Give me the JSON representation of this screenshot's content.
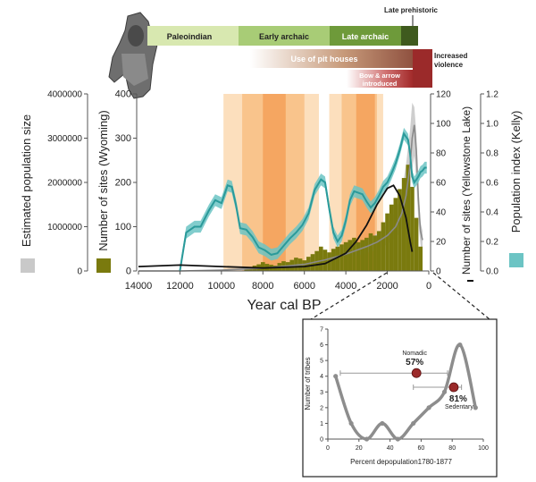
{
  "colors": {
    "olive": "#7a7a0e",
    "teal": "#2a9a9a",
    "teal_band": "#6cc4c4",
    "gray_band": "#c9c9c9",
    "gray_line": "#8a8a8a",
    "orange_light": "#fcd9b2",
    "orange_mid": "#f8b878",
    "orange_dark": "#f39a4e",
    "dark_red": "#9b2a2a",
    "green_light": "#d8e8b0",
    "green_mid": "#a8cc76",
    "green_dark": "#6e9a3a"
  },
  "periods": {
    "paleoindian": "Paleoindian",
    "early_archaic": "Early archaic",
    "late_archaic": "Late archaic",
    "late_prehistoric": "Late prehistoric",
    "pit_houses": "Use of pit houses",
    "violence": "Increased violence",
    "bow": "Bow & arrow introduced"
  },
  "chart_data": [
    {
      "type": "line",
      "xlabel": "Year cal BP",
      "xlim": [
        14000,
        0
      ],
      "x_ticks": [
        "14000",
        "12000",
        "10000",
        "8000",
        "6000",
        "4000",
        "2000",
        "0"
      ],
      "axes": {
        "population_size": {
          "label": "Estimated population size",
          "ticks": [
            "0",
            "1000000",
            "2000000",
            "3000000",
            "4000000"
          ],
          "ylim": [
            0,
            4000000
          ]
        },
        "sites_wyoming": {
          "label": "Number of sites (Wyoming)",
          "ticks": [
            "0",
            "100",
            "200",
            "300",
            "400"
          ],
          "ylim": [
            0,
            400
          ]
        },
        "sites_yellowstone": {
          "label": "Number of sites (Yellowstone Lake)",
          "ticks": [
            "0",
            "20",
            "40",
            "60",
            "80",
            "100",
            "120"
          ],
          "ylim": [
            0,
            120
          ]
        },
        "population_index": {
          "label": "Population index (Kelly)",
          "ticks": [
            "0.0",
            "0.2",
            "0.4",
            "0.6",
            "0.8",
            "1.0",
            "1.2"
          ],
          "ylim": [
            0,
            1.2
          ]
        }
      },
      "shaded_bands_bp": [
        {
          "from": 9900,
          "to": 5300,
          "shade": "light"
        },
        {
          "from": 9000,
          "to": 6000,
          "shade": "mid"
        },
        {
          "from": 8000,
          "to": 6900,
          "shade": "dark"
        },
        {
          "from": 4800,
          "to": 2200,
          "shade": "light"
        },
        {
          "from": 4200,
          "to": 2500,
          "shade": "mid"
        },
        {
          "from": 3500,
          "to": 2600,
          "shade": "dark"
        }
      ],
      "series": [
        {
          "name": "Number of sites (Wyoming)",
          "style": "bars",
          "axis": "sites_wyoming",
          "bin_width": 200,
          "x": [
            8800,
            8600,
            8400,
            8200,
            8000,
            7800,
            7600,
            7400,
            7200,
            7000,
            6800,
            6600,
            6400,
            6200,
            6000,
            5800,
            5600,
            5400,
            5200,
            5000,
            4800,
            4600,
            4400,
            4200,
            4000,
            3800,
            3600,
            3400,
            3200,
            3000,
            2800,
            2600,
            2400,
            2200,
            2000,
            1800,
            1600,
            1400,
            1200,
            1000,
            800,
            600,
            400
          ],
          "y": [
            5,
            8,
            12,
            15,
            20,
            16,
            14,
            12,
            18,
            22,
            20,
            25,
            30,
            28,
            24,
            32,
            38,
            45,
            55,
            48,
            42,
            50,
            55,
            60,
            65,
            70,
            75,
            65,
            70,
            75,
            85,
            80,
            90,
            110,
            130,
            150,
            165,
            185,
            210,
            240,
            190,
            120,
            55
          ]
        },
        {
          "name": "Estimated population size",
          "style": "band",
          "axis": "population_size",
          "x": [
            14000,
            12000,
            10000,
            8000,
            6000,
            5000,
            4000,
            3000,
            2500,
            2000,
            1600,
            1300,
            1100,
            900,
            800,
            700,
            600,
            500,
            400,
            300
          ],
          "y": [
            0,
            0,
            20000,
            60000,
            150000,
            250000,
            380000,
            550000,
            650000,
            800000,
            1000000,
            1300000,
            1700000,
            2400000,
            3000000,
            3300000,
            2700000,
            1600000,
            900000,
            700000
          ],
          "y_low": [
            0,
            0,
            10000,
            30000,
            100000,
            180000,
            280000,
            400000,
            480000,
            600000,
            750000,
            950000,
            1250000,
            1800000,
            2300000,
            2600000,
            2000000,
            1100000,
            600000,
            400000
          ],
          "y_high": [
            0,
            0,
            30000,
            90000,
            200000,
            320000,
            480000,
            700000,
            840000,
            1050000,
            1350000,
            1800000,
            2400000,
            3200000,
            3800000,
            3700000,
            3100000,
            1900000,
            1100000,
            900000
          ]
        },
        {
          "name": "Number of sites (Yellowstone Lake)",
          "style": "line",
          "axis": "sites_yellowstone",
          "x": [
            14000,
            12000,
            10000,
            8000,
            6000,
            5000,
            4000,
            3500,
            3000,
            2500,
            2000,
            1700,
            1400,
            1100,
            900,
            800
          ],
          "y": [
            3,
            4,
            3,
            2,
            3,
            5,
            12,
            20,
            31,
            45,
            56,
            58,
            51,
            36,
            20,
            13
          ]
        },
        {
          "name": "Population index (Kelly)",
          "style": "line_with_band",
          "axis": "population_index",
          "x": [
            12000,
            11700,
            11300,
            11000,
            10600,
            10300,
            10000,
            9700,
            9500,
            9300,
            9100,
            8800,
            8500,
            8200,
            7900,
            7600,
            7300,
            7000,
            6700,
            6400,
            6100,
            5800,
            5500,
            5200,
            5000,
            4800,
            4600,
            4400,
            4200,
            4000,
            3800,
            3600,
            3400,
            3200,
            3000,
            2800,
            2600,
            2400,
            2200,
            2000,
            1800,
            1600,
            1400,
            1200,
            1000,
            900,
            800,
            700,
            600,
            500,
            400,
            300,
            200,
            100
          ],
          "y": [
            0.0,
            0.26,
            0.3,
            0.3,
            0.41,
            0.48,
            0.46,
            0.58,
            0.57,
            0.45,
            0.29,
            0.28,
            0.23,
            0.16,
            0.14,
            0.11,
            0.12,
            0.17,
            0.22,
            0.26,
            0.31,
            0.39,
            0.55,
            0.62,
            0.6,
            0.42,
            0.26,
            0.2,
            0.24,
            0.34,
            0.48,
            0.54,
            0.53,
            0.52,
            0.47,
            0.43,
            0.46,
            0.51,
            0.57,
            0.6,
            0.66,
            0.73,
            0.82,
            0.93,
            0.89,
            0.79,
            0.64,
            0.6,
            0.62,
            0.64,
            0.67,
            0.68,
            0.7,
            0.7
          ],
          "band_half_width": 0.04
        },
        {
          "name": "Nomadic vs Sedentary",
          "style": "points_with_error",
          "axis": "depopulation",
          "points": [
            {
              "label": "Nomadic",
              "value_label": "57%",
              "x": 57,
              "y": 4.2,
              "x_err": [
                8,
                77
              ]
            },
            {
              "label": "Sedentary",
              "value_label": "81%",
              "x": 81,
              "y": 3.3,
              "x_err": [
                55,
                86
              ]
            }
          ]
        }
      ]
    },
    {
      "type": "line",
      "xlabel": "Percent depopulation1780-1877",
      "ylabel": "Number of tribes",
      "xlim": [
        0,
        100
      ],
      "ylim": [
        0,
        7
      ],
      "x_ticks": [
        "0",
        "20",
        "40",
        "60",
        "80",
        "100"
      ],
      "y_ticks": [
        "0",
        "1",
        "2",
        "3",
        "4",
        "5",
        "6",
        "7"
      ],
      "series": [
        {
          "name": "Number of tribes",
          "x": [
            5,
            15,
            25,
            35,
            45,
            55,
            65,
            75,
            85,
            95
          ],
          "y": [
            4,
            1,
            0,
            1,
            0,
            1,
            2,
            3,
            6,
            2
          ]
        }
      ]
    }
  ]
}
